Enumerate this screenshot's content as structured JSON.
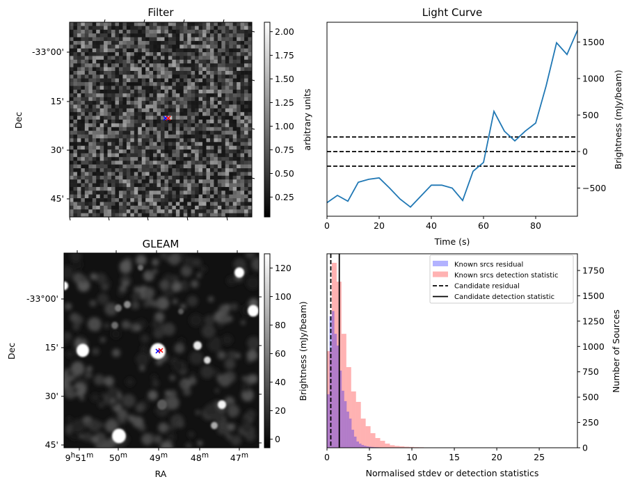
{
  "chart_data": [
    {
      "type": "heatmap",
      "panel": "filter",
      "title": "Filter",
      "xlabel": "",
      "ylabel": "Dec",
      "y_ticks": [
        "-33°00'",
        "15'",
        "30'",
        "45'"
      ],
      "colorbar": {
        "label": "arbitrary units",
        "range": [
          0.04,
          2.1
        ],
        "ticks": [
          "0.25",
          "0.50",
          "0.75",
          "1.00",
          "1.25",
          "1.50",
          "1.75",
          "2.00"
        ],
        "tick_values": [
          0.25,
          0.5,
          0.75,
          1.0,
          1.25,
          1.5,
          1.75,
          2.0
        ],
        "colormap": "gray"
      },
      "description": "Noise-like pixelated grayscale map with a brighter pixel at the center",
      "markers": [
        {
          "symbol": "x",
          "color": "#0000ff",
          "pos": "center"
        },
        {
          "symbol": "x",
          "color": "#ff0000",
          "pos": "center"
        }
      ]
    },
    {
      "type": "line",
      "panel": "light-curve",
      "title": "Light Curve",
      "xlabel": "Time (s)",
      "ylabel": "Brightness (mJy/beam)",
      "xlim": [
        0,
        96
      ],
      "ylim": [
        -886,
        1771
      ],
      "x_ticks": [
        0,
        20,
        40,
        60,
        80
      ],
      "y_ticks": [
        -500,
        0,
        500,
        1000,
        1500
      ],
      "y_tick_labels": [
        "−500",
        "0",
        "500",
        "1000",
        "1500"
      ],
      "series": [
        {
          "name": "light curve",
          "color": "#1f77b4",
          "x": [
            0,
            4,
            8,
            12,
            16,
            20,
            24,
            28,
            32,
            36,
            40,
            44,
            48,
            52,
            56,
            60,
            64,
            68,
            72,
            76,
            80,
            84,
            88,
            92,
            96
          ],
          "y": [
            -700,
            -600,
            -680,
            -420,
            -380,
            -360,
            -500,
            -650,
            -760,
            -610,
            -460,
            -460,
            -500,
            -670,
            -270,
            -150,
            550,
            280,
            145,
            280,
            390,
            900,
            1490,
            1330,
            1660
          ]
        }
      ],
      "hlines": [
        {
          "y": 200,
          "style": "dashed",
          "color": "#000000"
        },
        {
          "y": 0,
          "style": "dashed",
          "color": "#000000"
        },
        {
          "y": -200,
          "style": "dashed",
          "color": "#000000"
        }
      ]
    },
    {
      "type": "heatmap",
      "panel": "gleam",
      "title": "GLEAM",
      "xlabel": "RA",
      "ylabel": "Dec",
      "x_ticks": [
        "9h51m",
        "50m",
        "49m",
        "48m",
        "47m"
      ],
      "x_tick_parts": [
        {
          "h": "9",
          "m": "51"
        },
        {
          "m": "50"
        },
        {
          "m": "49"
        },
        {
          "m": "48"
        },
        {
          "m": "47"
        }
      ],
      "y_ticks": [
        "-33°00'",
        "15'",
        "30'",
        "45'"
      ],
      "colorbar": {
        "label": "Brightness (mJy/beam)",
        "range": [
          -6,
          130
        ],
        "ticks": [
          "0",
          "20",
          "40",
          "60",
          "80",
          "100",
          "120"
        ],
        "tick_values": [
          0,
          20,
          40,
          60,
          80,
          100,
          120
        ],
        "colormap": "gray"
      },
      "description": "Smooth grayscale radio map with several bright compact sources",
      "markers": [
        {
          "symbol": "x",
          "color": "#0000ff",
          "pos": "center"
        },
        {
          "symbol": "x",
          "color": "#ff0000",
          "pos": "center"
        }
      ]
    },
    {
      "type": "bar",
      "panel": "histogram",
      "title": "",
      "xlabel": "Normalised stdev or detection statistics",
      "ylabel": "Number of Sources",
      "xlim": [
        0,
        29.5
      ],
      "ylim": [
        0,
        1915
      ],
      "x_ticks": [
        0,
        5,
        10,
        15,
        20,
        25
      ],
      "y_ticks": [
        0,
        250,
        500,
        750,
        1000,
        1250,
        1500,
        1750
      ],
      "legend": {
        "position": "upper right",
        "entries": [
          {
            "label": "Known srcs residual",
            "type": "patch",
            "color": "#0000ff",
            "alpha": 0.3
          },
          {
            "label": "Known srcs detection statistic",
            "type": "patch",
            "color": "#ff0000",
            "alpha": 0.3
          },
          {
            "label": "Candidate residual",
            "type": "line",
            "style": "dashed",
            "color": "#000000"
          },
          {
            "label": "Candidate detection statistic",
            "type": "line",
            "style": "solid",
            "color": "#000000"
          }
        ]
      },
      "series": [
        {
          "name": "Known srcs residual",
          "color": "#0000ff",
          "alpha": 0.3,
          "bin_start": 0,
          "bin_width": 0.29,
          "values": [
            528,
            1300,
            1350,
            1125,
            1009,
            762,
            563,
            460,
            357,
            288,
            178,
            110,
            62,
            41,
            28,
            20,
            14,
            10,
            8,
            6,
            5,
            4,
            3,
            2
          ]
        },
        {
          "name": "Known srcs detection statistic",
          "color": "#ff0000",
          "alpha": 0.3,
          "bin_start": 0,
          "bin_width": 0.57,
          "values": [
            954,
            1826,
            1640,
            1125,
            796,
            556,
            453,
            288,
            213,
            144,
            96,
            69,
            41,
            25,
            18,
            14,
            10,
            8,
            6,
            5,
            3,
            2,
            2,
            1,
            1,
            1,
            0,
            0,
            0,
            0,
            2,
            2,
            0,
            0,
            0,
            0,
            0,
            0,
            0,
            0,
            0,
            0,
            0,
            0,
            0,
            0,
            0,
            0,
            0,
            3
          ]
        }
      ],
      "vlines": [
        {
          "x": 0.45,
          "style": "dashed",
          "label": "Candidate residual"
        },
        {
          "x": 1.45,
          "style": "solid",
          "label": "Candidate detection statistic"
        }
      ]
    }
  ]
}
